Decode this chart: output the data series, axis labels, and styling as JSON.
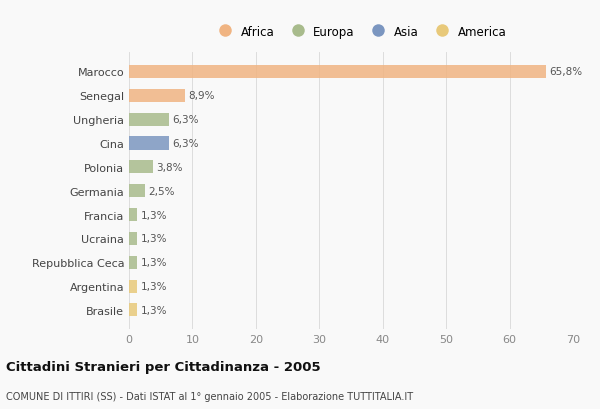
{
  "categories": [
    "Marocco",
    "Senegal",
    "Ungheria",
    "Cina",
    "Polonia",
    "Germania",
    "Francia",
    "Ucraina",
    "Repubblica Ceca",
    "Argentina",
    "Brasile"
  ],
  "values": [
    65.8,
    8.9,
    6.3,
    6.3,
    3.8,
    2.5,
    1.3,
    1.3,
    1.3,
    1.3,
    1.3
  ],
  "labels": [
    "65,8%",
    "8,9%",
    "6,3%",
    "6,3%",
    "3,8%",
    "2,5%",
    "1,3%",
    "1,3%",
    "1,3%",
    "1,3%",
    "1,3%"
  ],
  "colors": [
    "#F0B482",
    "#F0B482",
    "#A8BB8C",
    "#7B96C0",
    "#A8BB8C",
    "#A8BB8C",
    "#A8BB8C",
    "#A8BB8C",
    "#A8BB8C",
    "#E8C97A",
    "#E8C97A"
  ],
  "legend_labels": [
    "Africa",
    "Europa",
    "Asia",
    "America"
  ],
  "legend_colors": [
    "#F0B482",
    "#A8BB8C",
    "#7B96C0",
    "#E8C97A"
  ],
  "xlim": [
    0,
    70
  ],
  "xticks": [
    0,
    10,
    20,
    30,
    40,
    50,
    60,
    70
  ],
  "title": "Cittadini Stranieri per Cittadinanza - 2005",
  "subtitle": "COMUNE DI ITTIRI (SS) - Dati ISTAT al 1° gennaio 2005 - Elaborazione TUTTITALIA.IT",
  "bg_color": "#f9f9f9",
  "bar_height": 0.55
}
